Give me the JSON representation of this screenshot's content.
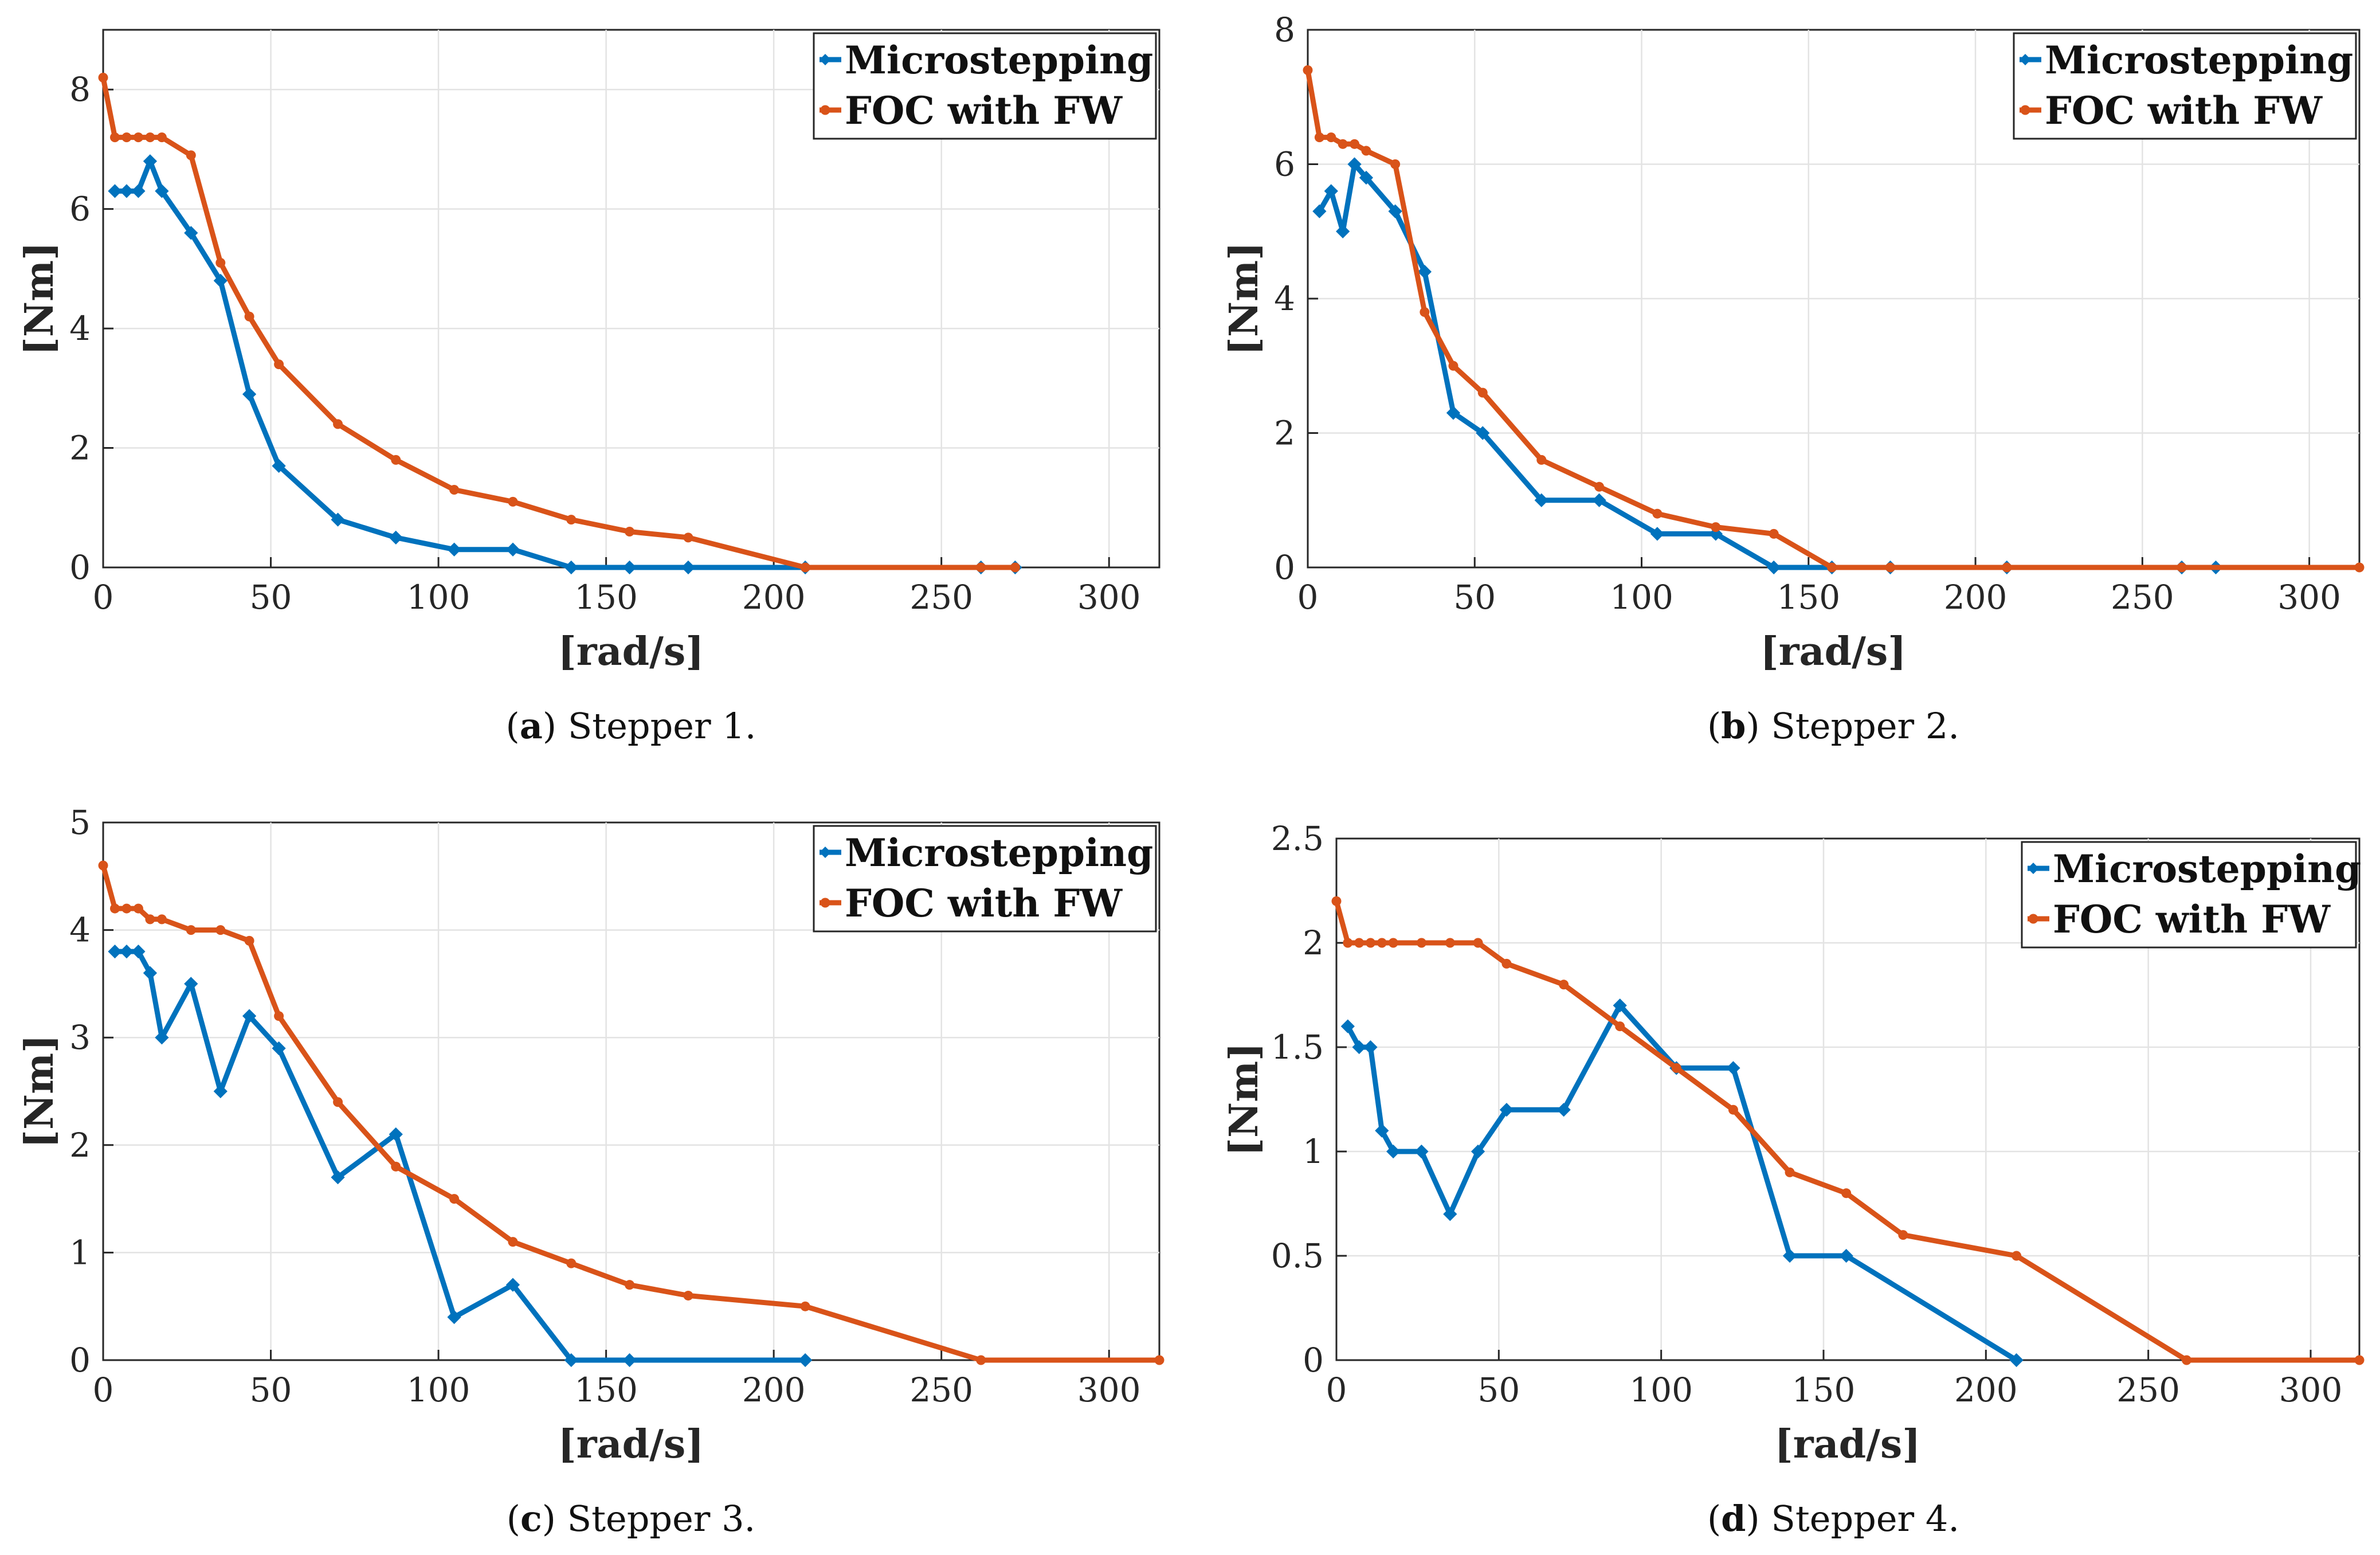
{
  "figure": {
    "panels": [
      {
        "letter": "a",
        "caption_open": "(",
        "caption_close": ")",
        "caption_text": " Stepper 1."
      },
      {
        "letter": "b",
        "caption_open": "(",
        "caption_close": ")",
        "caption_text": " Stepper 2."
      },
      {
        "letter": "c",
        "caption_open": "(",
        "caption_close": ")",
        "caption_text": " Stepper 3."
      },
      {
        "letter": "d",
        "caption_open": "(",
        "caption_close": ")",
        "caption_text": " Stepper 4."
      }
    ],
    "colors": {
      "microstepping": "#0072BD",
      "foc": "#D95319"
    }
  },
  "chart_data": [
    {
      "type": "line",
      "title": "Stepper 1.",
      "xlabel": "[rad/s]",
      "ylabel": "[Nm]",
      "xlim": [
        0,
        315
      ],
      "ylim": [
        0,
        9
      ],
      "xticks": [
        0,
        50,
        100,
        150,
        200,
        250,
        300
      ],
      "yticks": [
        0,
        2,
        4,
        6,
        8
      ],
      "ytick_labels": [
        "0",
        "2",
        "4",
        "6",
        "8"
      ],
      "legend": "top-right",
      "grid": true,
      "series": [
        {
          "name": "Microstepping",
          "x": [
            3.5,
            7,
            10.5,
            14,
            17.5,
            26.2,
            35,
            43.6,
            52.4,
            70,
            87.3,
            104.7,
            122.2,
            139.6,
            157,
            174.5,
            209.4,
            261.8,
            272
          ],
          "y": [
            6.3,
            6.3,
            6.3,
            6.8,
            6.3,
            5.6,
            4.8,
            2.9,
            1.7,
            0.8,
            0.5,
            0.3,
            0.3,
            0,
            0,
            0,
            0,
            0,
            0
          ]
        },
        {
          "name": "FOC with FW",
          "x": [
            0,
            3.5,
            7,
            10.5,
            14,
            17.5,
            26.2,
            35,
            43.6,
            52.4,
            70,
            87.3,
            104.7,
            122.2,
            139.6,
            157,
            174.5,
            209.4,
            261.8,
            272
          ],
          "y": [
            8.2,
            7.2,
            7.2,
            7.2,
            7.2,
            7.2,
            6.9,
            5.1,
            4.2,
            3.4,
            2.4,
            1.8,
            1.3,
            1.1,
            0.8,
            0.6,
            0.5,
            0,
            0,
            0
          ]
        }
      ]
    },
    {
      "type": "line",
      "title": "Stepper 2.",
      "xlabel": "[rad/s]",
      "ylabel": "[Nm]",
      "xlim": [
        0,
        315
      ],
      "ylim": [
        0,
        8
      ],
      "xticks": [
        0,
        50,
        100,
        150,
        200,
        250,
        300
      ],
      "yticks": [
        0,
        2,
        4,
        6,
        8
      ],
      "ytick_labels": [
        "0",
        "2",
        "4",
        "6",
        "8"
      ],
      "legend": "top-right",
      "grid": true,
      "series": [
        {
          "name": "Microstepping",
          "x": [
            3.5,
            7,
            10.5,
            14,
            17.5,
            26.2,
            35,
            43.6,
            52.4,
            70,
            87.3,
            104.7,
            122.2,
            139.6,
            157,
            174.5,
            209.4,
            261.8,
            272
          ],
          "y": [
            5.3,
            5.6,
            5.0,
            6.0,
            5.8,
            5.3,
            4.4,
            2.3,
            2.0,
            1.0,
            1.0,
            0.5,
            0.5,
            0,
            0,
            0,
            0,
            0,
            0
          ]
        },
        {
          "name": "FOC with FW",
          "x": [
            0,
            3.5,
            7,
            10.5,
            14,
            17.5,
            26.2,
            35,
            43.6,
            52.4,
            70,
            87.3,
            104.7,
            122.2,
            139.6,
            157,
            174.5,
            209.4,
            261.8,
            315
          ],
          "y": [
            7.4,
            6.4,
            6.4,
            6.3,
            6.3,
            6.2,
            6.0,
            3.8,
            3.0,
            2.6,
            1.6,
            1.2,
            0.8,
            0.6,
            0.5,
            0,
            0,
            0,
            0,
            0
          ]
        }
      ]
    },
    {
      "type": "line",
      "title": "Stepper 3.",
      "xlabel": "[rad/s]",
      "ylabel": "[Nm]",
      "xlim": [
        0,
        315
      ],
      "ylim": [
        0,
        5
      ],
      "xticks": [
        0,
        50,
        100,
        150,
        200,
        250,
        300
      ],
      "yticks": [
        0,
        1,
        2,
        3,
        4,
        5
      ],
      "ytick_labels": [
        "0",
        "1",
        "2",
        "3",
        "4",
        "5"
      ],
      "legend": "top-right",
      "grid": true,
      "series": [
        {
          "name": "Microstepping",
          "x": [
            3.5,
            7,
            10.5,
            14,
            17.5,
            26.2,
            35,
            43.6,
            52.4,
            70,
            87.3,
            104.7,
            122.2,
            139.6,
            157,
            209.4
          ],
          "y": [
            3.8,
            3.8,
            3.8,
            3.6,
            3.0,
            3.5,
            2.5,
            3.2,
            2.9,
            1.7,
            2.1,
            0.4,
            0.7,
            0,
            0,
            0
          ]
        },
        {
          "name": "FOC with FW",
          "x": [
            0,
            3.5,
            7,
            10.5,
            14,
            17.5,
            26.2,
            35,
            43.6,
            52.4,
            70,
            87.3,
            104.7,
            122.2,
            139.6,
            157,
            174.5,
            209.4,
            261.8,
            315
          ],
          "y": [
            4.6,
            4.2,
            4.2,
            4.2,
            4.1,
            4.1,
            4.0,
            4.0,
            3.9,
            3.2,
            2.4,
            1.8,
            1.5,
            1.1,
            0.9,
            0.7,
            0.6,
            0.5,
            0,
            0
          ]
        }
      ]
    },
    {
      "type": "line",
      "title": "Stepper 4.",
      "xlabel": "[rad/s]",
      "ylabel": "[Nm]",
      "xlim": [
        0,
        315
      ],
      "ylim": [
        0,
        2.5
      ],
      "xticks": [
        0,
        50,
        100,
        150,
        200,
        250,
        300
      ],
      "yticks": [
        0,
        0.5,
        1,
        1.5,
        2,
        2.5
      ],
      "ytick_labels": [
        "0",
        "0.5",
        "1",
        "1.5",
        "2",
        "2.5"
      ],
      "legend": "top-right",
      "grid": true,
      "series": [
        {
          "name": "Microstepping",
          "x": [
            3.5,
            7,
            10.5,
            14,
            17.5,
            26.2,
            35,
            43.6,
            52.4,
            70,
            87.3,
            104.7,
            122.2,
            139.6,
            157,
            209.4
          ],
          "y": [
            1.6,
            1.5,
            1.5,
            1.1,
            1.0,
            1.0,
            0.7,
            1.0,
            1.2,
            1.2,
            1.7,
            1.4,
            1.4,
            0.5,
            0.5,
            0
          ]
        },
        {
          "name": "FOC with FW",
          "x": [
            0,
            3.5,
            7,
            10.5,
            14,
            17.5,
            26.2,
            35,
            43.6,
            52.4,
            70,
            87.3,
            104.7,
            122.2,
            139.6,
            157,
            174.5,
            209.4,
            261.8,
            315
          ],
          "y": [
            2.2,
            2.0,
            2.0,
            2.0,
            2.0,
            2.0,
            2.0,
            2.0,
            2.0,
            1.9,
            1.8,
            1.6,
            1.4,
            1.2,
            0.9,
            0.8,
            0.6,
            0.5,
            0,
            0
          ]
        }
      ]
    }
  ]
}
